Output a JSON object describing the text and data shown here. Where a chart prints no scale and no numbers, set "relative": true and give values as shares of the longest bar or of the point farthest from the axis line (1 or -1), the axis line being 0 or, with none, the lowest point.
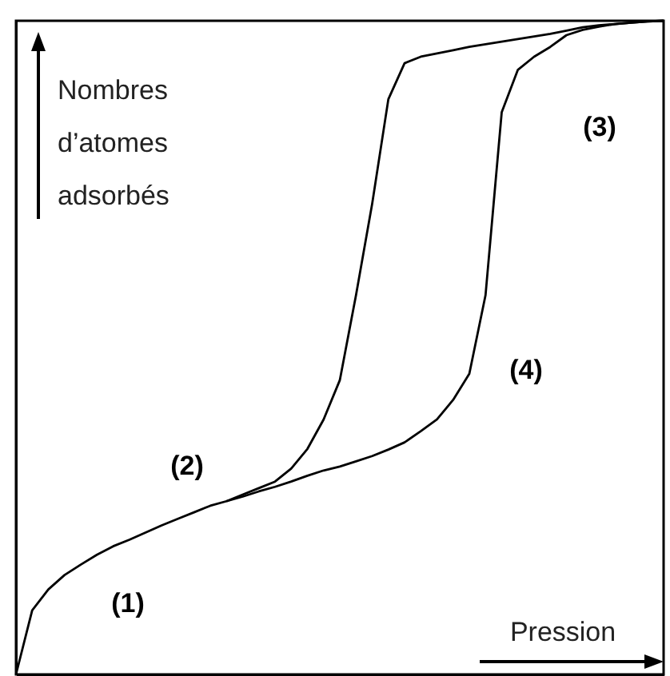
{
  "chart_data": {
    "type": "line",
    "relative": true,
    "xlabel": "Pression",
    "ylabel": "Nombres d’atomes adsorbés",
    "categories": [
      null,
      null,
      null,
      null,
      null,
      null,
      null,
      null,
      null,
      null,
      null,
      null,
      null,
      null,
      null,
      null,
      null,
      null,
      null,
      null,
      null,
      null,
      null,
      null,
      null,
      null,
      null,
      null,
      null,
      null,
      null,
      null,
      null,
      null,
      null,
      null,
      null,
      null,
      null,
      null,
      null
    ],
    "series": [
      {
        "color": "#000000",
        "values": [
          0,
          0.098,
          0.13,
          0.152,
          0.168,
          0.183,
          0.196,
          0.206,
          0.217,
          0.228,
          0.238,
          0.248,
          0.258,
          0.265,
          0.272,
          0.28,
          0.287,
          0.295,
          0.304,
          0.312,
          0.318,
          0.326,
          0.334,
          0.344,
          0.355,
          0.372,
          0.39,
          0.42,
          0.46,
          0.58,
          0.86,
          0.925,
          0.945,
          0.96,
          0.978,
          0.986,
          0.991,
          0.995,
          0.997,
          0.999,
          1
        ]
      },
      {
        "color": "#000000",
        "values": [
          null,
          null,
          null,
          null,
          null,
          null,
          null,
          null,
          null,
          null,
          null,
          null,
          null,
          0.265,
          0.275,
          0.285,
          0.295,
          0.315,
          0.345,
          0.39,
          0.45,
          0.58,
          0.72,
          0.88,
          0.935,
          0.945,
          0.95,
          0.955,
          0.96,
          0.964,
          0.968,
          0.972,
          0.976,
          0.98,
          0.985,
          0.99,
          0.993,
          0.995,
          0.997,
          0.999,
          1
        ]
      }
    ],
    "annotations": [
      "(1)",
      "(2)",
      "(3)",
      "(4)"
    ]
  }
}
